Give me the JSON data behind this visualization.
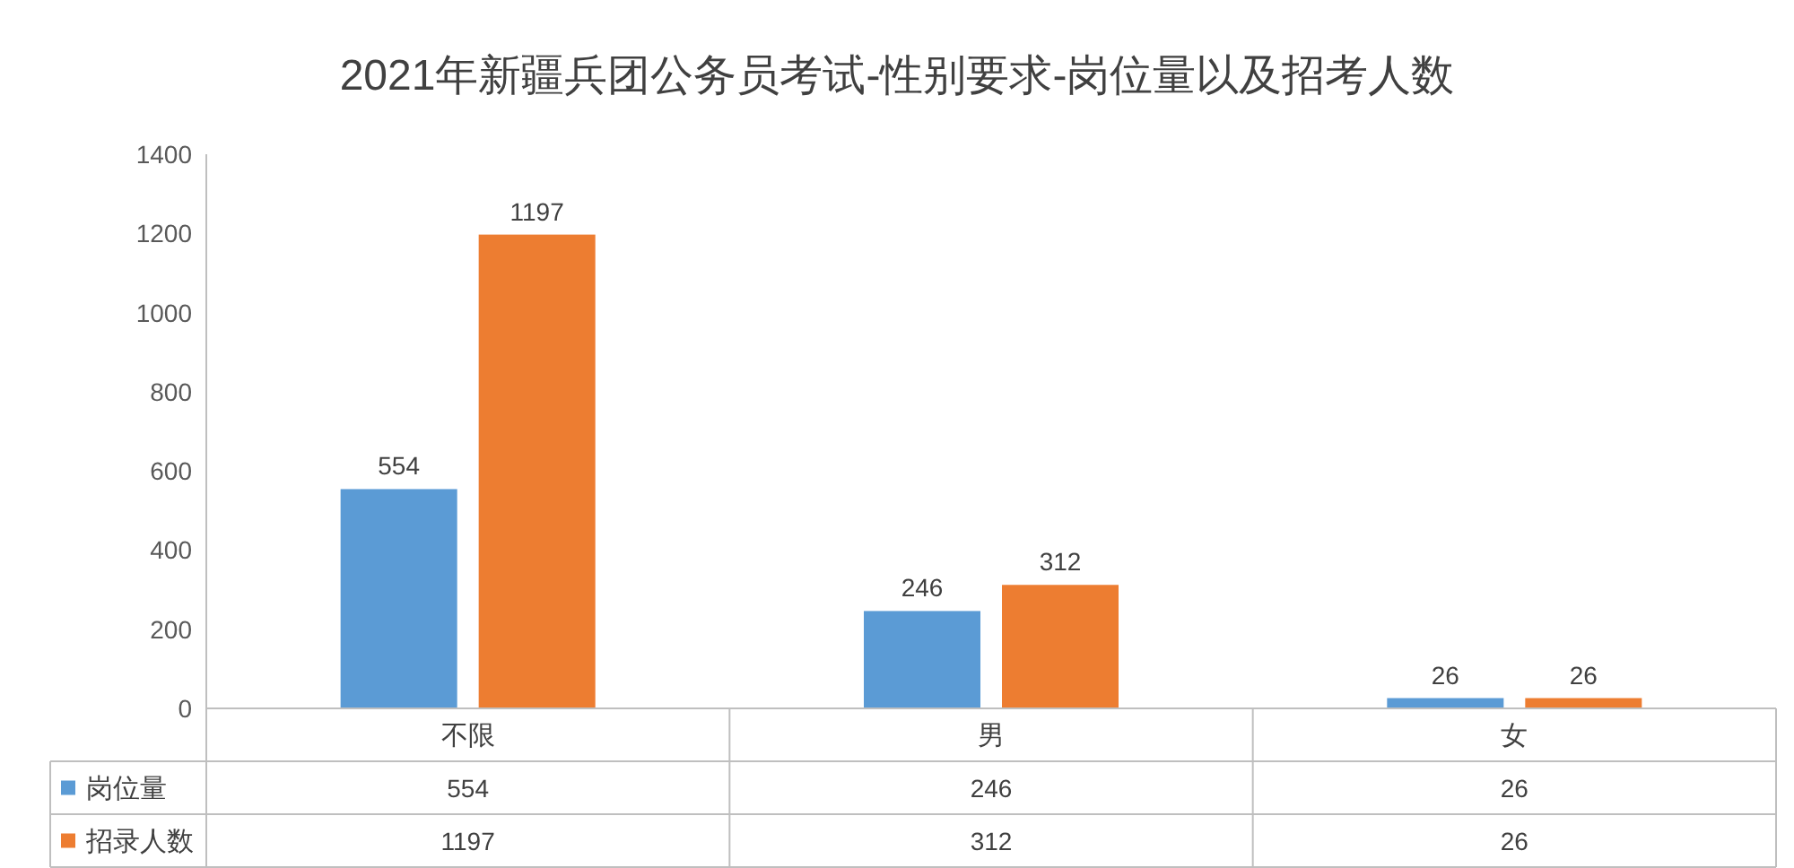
{
  "chart_data": {
    "type": "bar",
    "title": "2021年新疆兵团公务员考试-性别要求-岗位量以及招考人数",
    "categories": [
      "不限",
      "男",
      "女"
    ],
    "series": [
      {
        "name": "岗位量",
        "color": "#5b9bd5",
        "values": [
          554,
          246,
          26
        ],
        "value_labels": [
          "554",
          "246",
          "26"
        ]
      },
      {
        "name": "招录人数",
        "color": "#ed7d31",
        "values": [
          1197,
          312,
          26
        ],
        "value_labels": [
          "1197",
          "312",
          "26"
        ]
      }
    ],
    "ylim": [
      0,
      1400
    ],
    "yticks": [
      0,
      200,
      400,
      600,
      800,
      1000,
      1200,
      1400
    ],
    "annotations": [
      "554",
      "246",
      "26",
      "1197",
      "312",
      "26"
    ],
    "grid": false,
    "legend": "bottom"
  }
}
